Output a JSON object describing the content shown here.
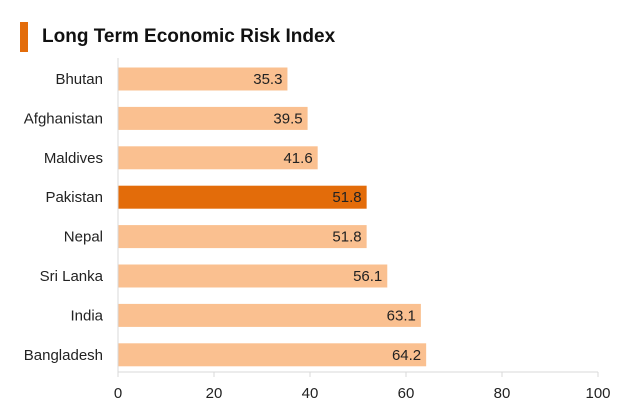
{
  "title": "Long Term Economic Risk Index",
  "colors": {
    "accent": "#E36C0A",
    "bar": "#FAC090",
    "highlight": "#E36C0A",
    "axis": "#D9D9D9",
    "text": "#222222"
  },
  "chart_data": {
    "type": "bar",
    "orientation": "horizontal",
    "title": "Long Term Economic Risk Index",
    "categories": [
      "Bhutan",
      "Afghanistan",
      "Maldives",
      "Pakistan",
      "Nepal",
      "Sri Lanka",
      "India",
      "Bangladesh"
    ],
    "values": [
      35.3,
      39.5,
      41.6,
      51.8,
      51.8,
      56.1,
      63.1,
      64.2
    ],
    "data_labels": [
      "35.3",
      "39.5",
      "41.6",
      "51.8",
      "51.8",
      "56.1",
      "63.1",
      "64.2"
    ],
    "highlighted_category": "Pakistan",
    "xlim": [
      0,
      100
    ],
    "x_ticks": [
      "0",
      "20",
      "40",
      "60",
      "80",
      "100"
    ],
    "xlabel": "",
    "ylabel": "",
    "grid": false,
    "legend": "none"
  }
}
